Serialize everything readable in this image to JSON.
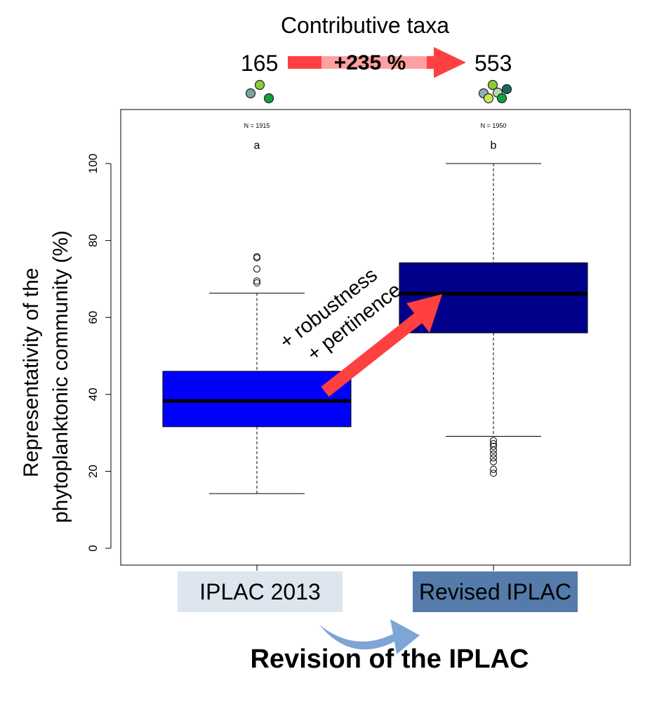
{
  "header": {
    "title": "Contributive taxa",
    "count_before": "165",
    "count_after": "553",
    "change_label": "+235 %"
  },
  "annotation": {
    "line1": "+ robustness",
    "line2": "+ pertinence"
  },
  "footer": {
    "category_before": "IPLAC 2013",
    "category_after": "Revised IPLAC",
    "title": "Revision of the IPLAC"
  },
  "colors": {
    "box_before": "#0000ff",
    "box_after": "#00008b",
    "arrow": "#ff4040",
    "arrow_light": "#ffa0a0",
    "category_before_bg": "#dee5ef",
    "category_after_bg": "#547ba9",
    "curved_arrow": "#6f9bd0",
    "dots_before": [
      "#7aa3a0",
      "#8ccc3a",
      "#11a23b"
    ],
    "dots_after": [
      "#8fb0b8",
      "#8ccc3a",
      "#b8d8a8",
      "#1b6a57",
      "#c8e85a",
      "#11a23b"
    ]
  },
  "chart_data": {
    "type": "boxplot",
    "title": "",
    "xlabel": "",
    "ylabel": "Representativity of the phytoplanktonic community (%)",
    "ylabel_lines": [
      "Representativity of the",
      "phytoplanktonic community (%)"
    ],
    "ylim": [
      0,
      110
    ],
    "yticks": [
      0,
      20,
      40,
      60,
      80,
      100
    ],
    "ytick_labels": [
      "0",
      "20",
      "40",
      "60",
      "80",
      "100"
    ],
    "categories": [
      "IPLAC 2013",
      "Revised IPLAC"
    ],
    "series": [
      {
        "name": "IPLAC 2013",
        "n_label": "N = 1915",
        "group_letter": "a",
        "whisker_low": 14.2,
        "q1": 31.6,
        "median": 38.3,
        "q3": 46.0,
        "whisker_high": 66.3,
        "outliers": [
          69.0,
          69.5,
          72.6,
          75.5,
          75.8
        ]
      },
      {
        "name": "Revised IPLAC",
        "n_label": "N = 1950",
        "group_letter": "b",
        "whisker_low": 29.1,
        "q1": 56.0,
        "median": 66.2,
        "q3": 74.2,
        "whisker_high": 100.0,
        "outliers": [
          19.5,
          20.5,
          22.5,
          23.5,
          24.5,
          25.5,
          26.5,
          27.2,
          28.0
        ]
      }
    ]
  }
}
